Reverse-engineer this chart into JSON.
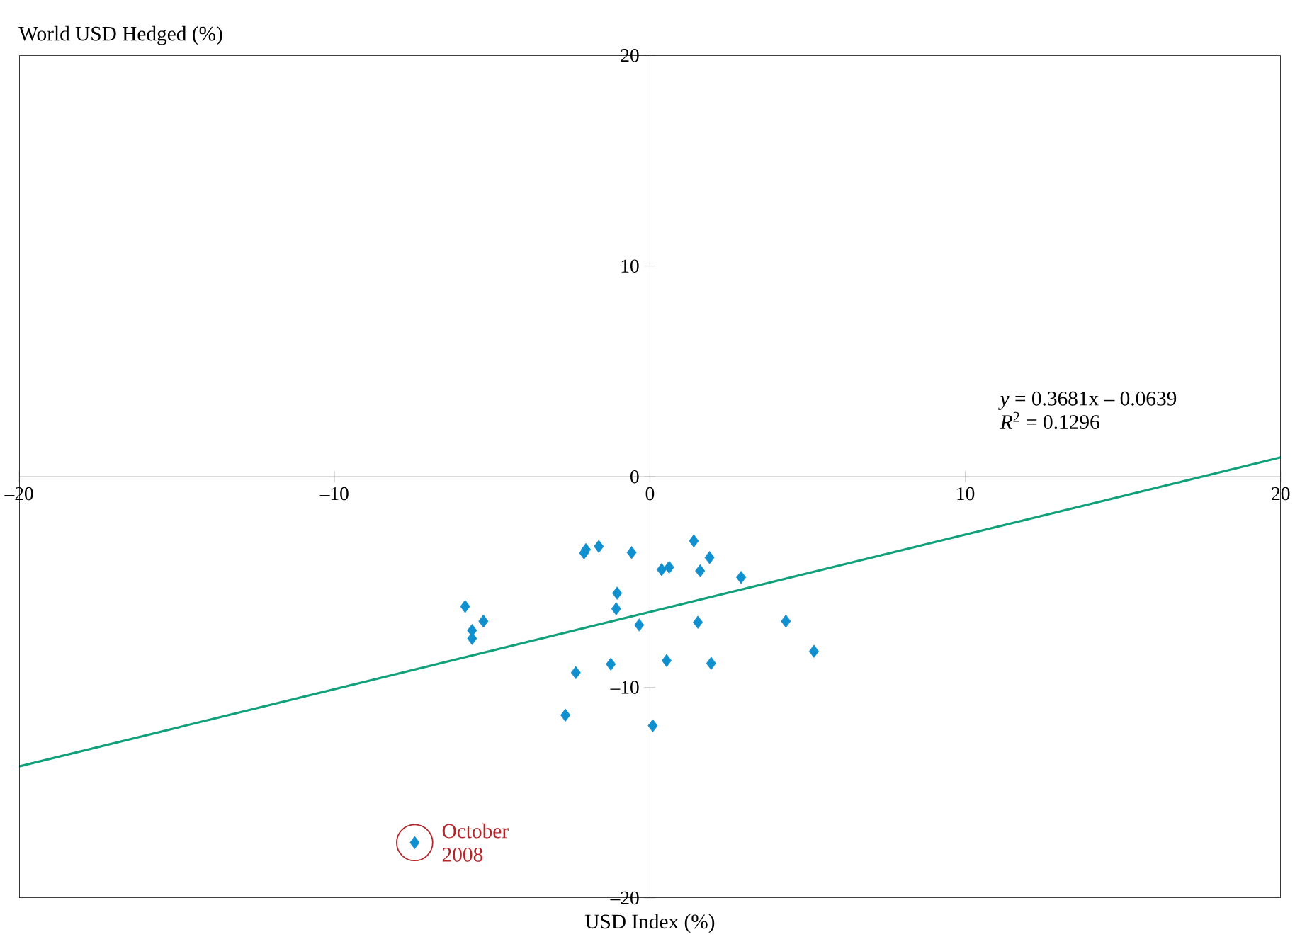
{
  "chart_data": {
    "type": "scatter",
    "xlabel": "USD Index (%)",
    "ylabel": "World USD Hedged (%)",
    "xlim": [
      -20,
      20
    ],
    "ylim": [
      -20,
      20
    ],
    "xticks": [
      {
        "value": -20,
        "label": "–20"
      },
      {
        "value": -10,
        "label": "–10"
      },
      0,
      10,
      20
    ],
    "yticks": [
      {
        "value": -20,
        "label": "–20"
      },
      {
        "value": -10,
        "label": "–10"
      },
      0,
      10,
      20
    ],
    "marker": "diamond",
    "grid": false,
    "series": [
      {
        "color": "#1190d0",
        "x": [
          -5.86,
          -5.64,
          -5.64,
          -5.28,
          -2.09,
          -2.03,
          -1.62,
          -0.58,
          -1.04,
          -1.07,
          -0.34,
          -1.24,
          -2.35,
          -2.68,
          0.09,
          0.37,
          0.61,
          1.39,
          1.89,
          1.59,
          2.89,
          1.52,
          0.53,
          1.94,
          4.31,
          5.2,
          -7.46
        ],
        "values": [
          -6.16,
          -7.3,
          -7.68,
          -6.86,
          -3.62,
          -3.46,
          -3.31,
          -3.6,
          -5.53,
          -6.27,
          -7.04,
          -8.9,
          -9.3,
          -11.32,
          -11.82,
          -4.41,
          -4.3,
          -3.05,
          -3.84,
          -4.47,
          -4.78,
          -6.91,
          -8.73,
          -8.86,
          -6.86,
          -8.29,
          -17.37
        ]
      },
      {
        "type": "line",
        "color": "#10a07a",
        "marker": "none",
        "line_style": "solid",
        "x": [
          -20,
          20
        ],
        "values": [
          -13.75,
          0.92
        ]
      }
    ],
    "annotations": [
      "*y* = 0.3681x – 0.0639",
      "*R*$^{2}$ = 0.1296",
      {
        "text": "October 2008",
        "x": -7.46,
        "y": -17.37
      }
    ]
  }
}
